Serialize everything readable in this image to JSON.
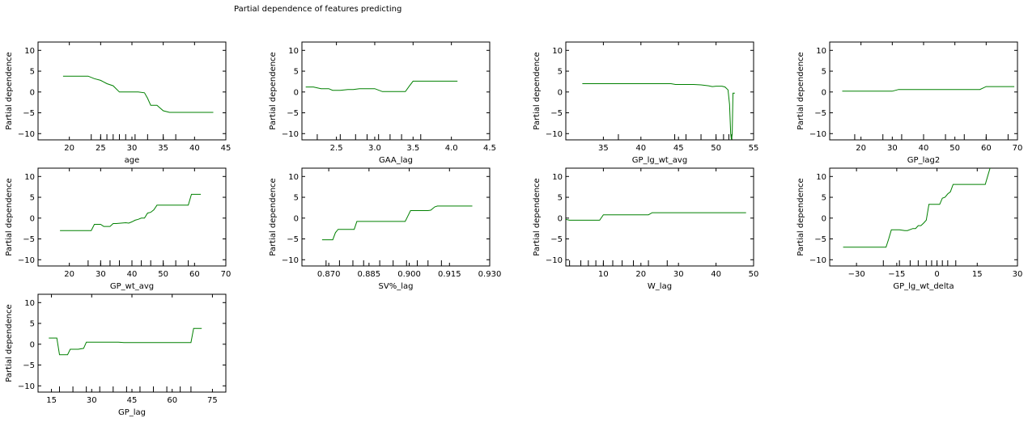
{
  "figure": {
    "title": "Partial dependence of features predicting"
  },
  "line_color": "#008000",
  "chart_data": [
    {
      "type": "line",
      "xlabel": "age",
      "ylabel": "Partial dependence",
      "xlim": [
        15,
        45
      ],
      "ylim": [
        -11.5,
        12
      ],
      "xticks": [
        20,
        25,
        30,
        35,
        40,
        45
      ],
      "xtick_labels": [
        "20",
        "25",
        "30",
        "35",
        "40",
        "45"
      ],
      "yticks": [
        -10,
        -5,
        0,
        5,
        10
      ],
      "ytick_labels": [
        "−10",
        "−5",
        "0",
        "5",
        "10"
      ],
      "rug": [
        23.5,
        25,
        26,
        27,
        28,
        29,
        30.5,
        32.5,
        35,
        37
      ],
      "x": [
        19,
        20,
        22,
        23,
        24,
        25,
        26,
        27,
        28,
        29,
        30,
        31,
        32,
        32.5,
        33,
        34,
        35,
        36,
        37,
        40,
        43
      ],
      "y": [
        3.8,
        3.8,
        3.8,
        3.8,
        3.2,
        2.8,
        2,
        1.5,
        0,
        0,
        0,
        0,
        -0.2,
        -1.5,
        -3.2,
        -3.2,
        -4.5,
        -4.9,
        -4.9,
        -4.9,
        -4.9
      ]
    },
    {
      "type": "line",
      "xlabel": "GAA_lag",
      "ylabel": "Partial dependence",
      "xlim": [
        2.05,
        4.5
      ],
      "ylim": [
        -11.5,
        12
      ],
      "xticks": [
        2.5,
        3.0,
        3.5,
        4.0,
        4.5
      ],
      "xtick_labels": [
        "2.5",
        "3.0",
        "3.5",
        "4.0",
        "4.5"
      ],
      "yticks": [
        -10,
        -5,
        0,
        5,
        10
      ],
      "ytick_labels": [
        "−10",
        "−5",
        "0",
        "5",
        "10"
      ],
      "rug": [
        2.25,
        2.55,
        2.75,
        2.9,
        3.05,
        3.2,
        3.35,
        3.6
      ],
      "x": [
        2.1,
        2.2,
        2.3,
        2.4,
        2.45,
        2.55,
        2.65,
        2.72,
        2.8,
        3.0,
        3.1,
        3.2,
        3.3,
        3.4,
        3.45,
        3.5,
        3.6,
        4.08
      ],
      "y": [
        1.2,
        1.2,
        0.8,
        0.8,
        0.4,
        0.4,
        0.6,
        0.6,
        0.8,
        0.8,
        0.1,
        0.1,
        0.1,
        0.1,
        1.4,
        2.6,
        2.6,
        2.6
      ]
    },
    {
      "type": "line",
      "xlabel": "GP_lg_wt_avg",
      "ylabel": "Partial dependence",
      "xlim": [
        30,
        55
      ],
      "ylim": [
        -11.5,
        12
      ],
      "xticks": [
        35,
        40,
        45,
        50,
        55
      ],
      "xtick_labels": [
        "35",
        "40",
        "45",
        "50",
        "55"
      ],
      "yticks": [
        -10,
        -5,
        0,
        5,
        10
      ],
      "ytick_labels": [
        "−10",
        "−5",
        "0",
        "5",
        "10"
      ],
      "rug": [
        37,
        44.5,
        46,
        48,
        50,
        51,
        51.7,
        52.1
      ],
      "x": [
        32.2,
        40,
        44,
        44.6,
        47,
        48,
        49,
        49.5,
        50,
        50.8,
        51.2,
        51.6,
        51.8,
        51.95,
        52.05,
        52.15,
        52.25,
        52.5
      ],
      "y": [
        2,
        2,
        2,
        1.8,
        1.8,
        1.7,
        1.5,
        1.3,
        1.4,
        1.4,
        1.2,
        0.5,
        -3,
        -10,
        -11.5,
        -10,
        -0.3,
        -0.3
      ]
    },
    {
      "type": "line",
      "xlabel": "GP_lag2",
      "ylabel": "Partial dependence",
      "xlim": [
        10,
        70
      ],
      "ylim": [
        -11.5,
        12
      ],
      "xticks": [
        20,
        30,
        40,
        50,
        60,
        70
      ],
      "xtick_labels": [
        "20",
        "30",
        "40",
        "50",
        "60",
        "70"
      ],
      "yticks": [
        -10,
        -5,
        0,
        5,
        10
      ],
      "ytick_labels": [
        "−10",
        "−5",
        "0",
        "5",
        "10"
      ],
      "rug": [
        18,
        27,
        33,
        40,
        47,
        53,
        60,
        67
      ],
      "x": [
        14,
        20,
        30,
        32,
        40,
        50,
        58,
        60,
        69
      ],
      "y": [
        0.2,
        0.2,
        0.2,
        0.6,
        0.6,
        0.6,
        0.6,
        1.3,
        1.3
      ]
    },
    {
      "type": "line",
      "xlabel": "GP_wt_avg",
      "ylabel": "Partial dependence",
      "xlim": [
        10,
        70
      ],
      "ylim": [
        -11.5,
        12
      ],
      "xticks": [
        20,
        30,
        40,
        50,
        60,
        70
      ],
      "xtick_labels": [
        "20",
        "30",
        "40",
        "50",
        "60",
        "70"
      ],
      "yticks": [
        -10,
        -5,
        0,
        5,
        10
      ],
      "ytick_labels": [
        "−10",
        "−5",
        "0",
        "5",
        "10"
      ],
      "rug": [
        26,
        30,
        33,
        36,
        40,
        43,
        46,
        50,
        54,
        58
      ],
      "x": [
        17,
        25,
        27,
        28,
        30,
        31,
        33,
        34,
        35,
        38,
        39,
        40,
        41,
        42,
        43,
        44,
        45,
        46,
        47,
        48,
        50,
        55,
        58,
        59,
        62
      ],
      "y": [
        -3,
        -3,
        -3,
        -1.5,
        -1.5,
        -2,
        -2,
        -1.3,
        -1.3,
        -1.1,
        -1.2,
        -0.9,
        -0.5,
        -0.3,
        0,
        0,
        1.2,
        1.4,
        2,
        3.1,
        3.1,
        3.1,
        3.1,
        5.7,
        5.7
      ]
    },
    {
      "type": "line",
      "xlabel": "SV%_lag",
      "ylabel": "Partial dependence",
      "xlim": [
        0.86,
        0.93
      ],
      "ylim": [
        -11.5,
        12
      ],
      "xticks": [
        0.87,
        0.885,
        0.9,
        0.915,
        0.93
      ],
      "xtick_labels": [
        "0.870",
        "0.885",
        "0.900",
        "0.915",
        "0.930"
      ],
      "yticks": [
        -10,
        -5,
        0,
        5,
        10
      ],
      "ytick_labels": [
        "−10",
        "−5",
        "0",
        "5",
        "10"
      ],
      "rug": [
        0.869,
        0.874,
        0.879,
        0.883,
        0.889,
        0.894,
        0.899,
        0.903,
        0.907,
        0.912
      ],
      "x": [
        0.8675,
        0.8715,
        0.8725,
        0.8735,
        0.877,
        0.8795,
        0.8805,
        0.89,
        0.8985,
        0.8995,
        0.9005,
        0.907,
        0.908,
        0.9095,
        0.9105,
        0.9235
      ],
      "y": [
        -5.2,
        -5.2,
        -3.5,
        -2.7,
        -2.7,
        -2.7,
        -0.8,
        -0.8,
        -0.8,
        0.5,
        1.8,
        1.8,
        1.9,
        2.7,
        2.9,
        2.9
      ]
    },
    {
      "type": "line",
      "xlabel": "W_lag",
      "ylabel": "Partial dependence",
      "xlim": [
        0,
        50
      ],
      "ylim": [
        -11.5,
        12
      ],
      "xticks": [
        10,
        20,
        30,
        40,
        50
      ],
      "xtick_labels": [
        "10",
        "20",
        "30",
        "40",
        "50"
      ],
      "yticks": [
        -10,
        -5,
        0,
        5,
        10
      ],
      "ytick_labels": [
        "−10",
        "−5",
        "0",
        "5",
        "10"
      ],
      "rug": [
        1,
        4,
        6,
        8,
        10,
        12.5,
        15,
        18,
        22,
        27
      ],
      "x": [
        0,
        1,
        9,
        10,
        15,
        22,
        23,
        30,
        48
      ],
      "y": [
        -0.3,
        -0.5,
        -0.5,
        0.8,
        0.8,
        0.8,
        1.3,
        1.3,
        1.3
      ]
    },
    {
      "type": "line",
      "xlabel": "GP_lg_wt_delta",
      "ylabel": "Partial dependence",
      "xlim": [
        -40,
        30
      ],
      "ylim": [
        -11.5,
        12
      ],
      "xticks": [
        -30,
        -15,
        0,
        15,
        30
      ],
      "xtick_labels": [
        "−30",
        "−15",
        "0",
        "15",
        "30"
      ],
      "yticks": [
        -10,
        -5,
        0,
        5,
        10
      ],
      "ytick_labels": [
        "−10",
        "−5",
        "0",
        "5",
        "10"
      ],
      "rug": [
        -20,
        -14,
        -10,
        -7,
        -4,
        -2,
        0,
        2,
        4,
        7
      ],
      "x": [
        -35,
        -20,
        -19,
        -18,
        -17,
        -15,
        -14,
        -12,
        -11,
        -9,
        -8,
        -7,
        -6,
        -5,
        -4,
        -3,
        -2,
        0,
        1,
        2,
        3,
        4,
        5,
        6,
        7,
        18,
        19,
        20
      ],
      "y": [
        -7,
        -7,
        -7,
        -5,
        -2.8,
        -2.8,
        -2.8,
        -3,
        -3,
        -2.5,
        -2.5,
        -1.8,
        -1.8,
        -1.2,
        -0.5,
        3.3,
        3.3,
        3.3,
        3.3,
        4.8,
        5,
        5.8,
        6.3,
        8.1,
        8.1,
        8.1,
        10.3,
        12.5
      ]
    },
    {
      "type": "line",
      "xlabel": "GP_lag",
      "ylabel": "Partial dependence",
      "xlim": [
        10,
        80
      ],
      "ylim": [
        -11.5,
        12
      ],
      "xticks": [
        15,
        30,
        45,
        60,
        75
      ],
      "xtick_labels": [
        "15",
        "30",
        "45",
        "60",
        "75"
      ],
      "yticks": [
        -10,
        -5,
        0,
        5,
        10
      ],
      "ytick_labels": [
        "−10",
        "−5",
        "0",
        "5",
        "10"
      ],
      "rug": [
        18,
        23,
        28,
        33,
        38,
        43,
        48,
        53,
        58,
        63,
        67
      ],
      "x": [
        14,
        17,
        18,
        19,
        20,
        21,
        22,
        23,
        25,
        27,
        28,
        30,
        40,
        42,
        45,
        60,
        67,
        68,
        69,
        71
      ],
      "y": [
        1.5,
        1.5,
        -2.5,
        -2.5,
        -2.5,
        -2.5,
        -1.2,
        -1.2,
        -1.2,
        -1,
        0.5,
        0.5,
        0.5,
        0.4,
        0.4,
        0.4,
        0.4,
        3.8,
        3.8,
        3.8
      ]
    }
  ]
}
